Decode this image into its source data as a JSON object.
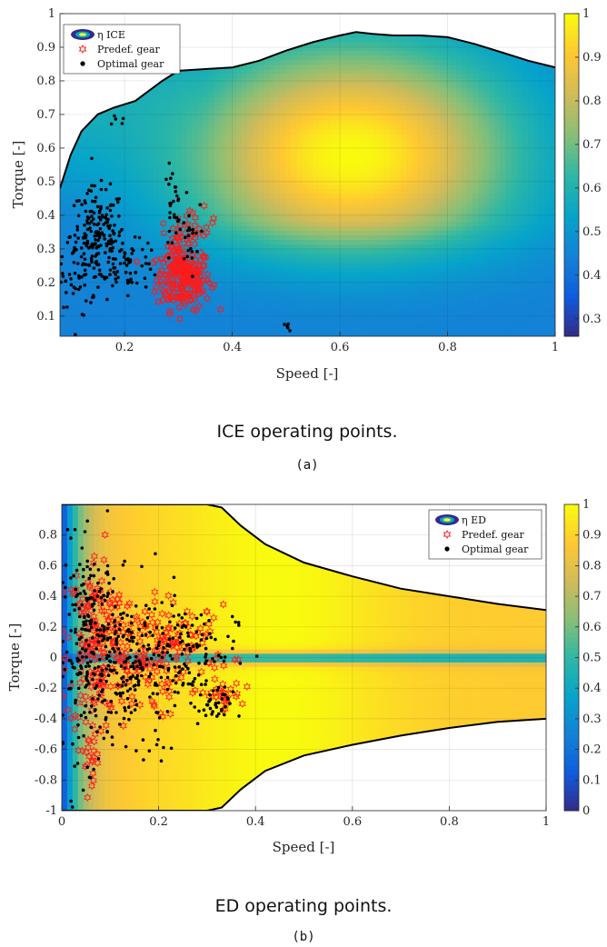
{
  "colors": {
    "parula": [
      "#352a87",
      "#0f5cdd",
      "#1481d6",
      "#06a4ca",
      "#2eb7a4",
      "#87bf77",
      "#d1bb59",
      "#fec832",
      "#f9fb0e"
    ],
    "predef_marker": "#ff1a1a",
    "optimal_marker": "#000000",
    "envelope": "#000000"
  },
  "chart_data": [
    {
      "type": "scatter",
      "caption": "ICE operating points.",
      "sublabel": "(a)",
      "xlabel": "Speed [-]",
      "ylabel": "Torque [-]",
      "xlim": [
        0.08,
        1.0
      ],
      "ylim": [
        0.04,
        1.0
      ],
      "xticks": [
        0.2,
        0.4,
        0.6,
        0.8,
        1
      ],
      "yticks": [
        0.1,
        0.2,
        0.3,
        0.4,
        0.5,
        0.6,
        0.7,
        0.8,
        0.9,
        1
      ],
      "xtick_labels": [
        "0.2",
        "0.4",
        "0.6",
        "0.8",
        "1"
      ],
      "ytick_labels": [
        "0.1",
        "0.2",
        "0.3",
        "0.4",
        "0.5",
        "0.6",
        "0.7",
        "0.8",
        "0.9",
        "1"
      ],
      "grid": true,
      "colorbar": {
        "range": [
          0.26,
          1.0
        ],
        "ticks": [
          0.3,
          0.4,
          0.5,
          0.6,
          0.7,
          0.8,
          0.9,
          1
        ],
        "tick_labels": [
          "0.3",
          "0.4",
          "0.5",
          "0.6",
          "0.7",
          "0.8",
          "0.9",
          "1"
        ]
      },
      "legend": {
        "position": "top-left",
        "entries": [
          "η ICE",
          "Predef. gear",
          "Optimal gear"
        ]
      },
      "background": "efficiency contour map",
      "max_torque_curve": {
        "x": [
          0.08,
          0.1,
          0.12,
          0.15,
          0.18,
          0.22,
          0.27,
          0.3,
          0.35,
          0.4,
          0.45,
          0.5,
          0.55,
          0.6,
          0.63,
          0.66,
          0.7,
          0.75,
          0.8,
          0.85,
          0.9,
          0.95,
          1.0
        ],
        "y": [
          0.48,
          0.58,
          0.65,
          0.7,
          0.72,
          0.74,
          0.8,
          0.83,
          0.835,
          0.84,
          0.86,
          0.89,
          0.915,
          0.935,
          0.945,
          0.94,
          0.935,
          0.935,
          0.93,
          0.91,
          0.885,
          0.86,
          0.84
        ]
      },
      "series": [
        {
          "name": "Predef. gear",
          "marker": "hexagram",
          "clusters": [
            {
              "cx": 0.31,
              "cy": 0.21,
              "sx": 0.025,
              "sy": 0.045,
              "n": 200
            },
            {
              "cx": 0.3,
              "cy": 0.3,
              "sx": 0.015,
              "sy": 0.04,
              "n": 40
            },
            {
              "cx": 0.33,
              "cy": 0.37,
              "sx": 0.02,
              "sy": 0.025,
              "n": 22
            }
          ]
        },
        {
          "name": "Optimal gear",
          "marker": "dot",
          "clusters": [
            {
              "cx": 0.15,
              "cy": 0.34,
              "sx": 0.025,
              "sy": 0.07,
              "n": 170
            },
            {
              "cx": 0.21,
              "cy": 0.25,
              "sx": 0.03,
              "sy": 0.035,
              "n": 60
            },
            {
              "cx": 0.12,
              "cy": 0.25,
              "sx": 0.02,
              "sy": 0.06,
              "n": 40
            },
            {
              "cx": 0.29,
              "cy": 0.42,
              "sx": 0.008,
              "sy": 0.06,
              "n": 28
            },
            {
              "cx": 0.32,
              "cy": 0.33,
              "sx": 0.01,
              "sy": 0.05,
              "n": 20
            },
            {
              "cx": 0.18,
              "cy": 0.68,
              "sx": 0.012,
              "sy": 0.03,
              "n": 6
            },
            {
              "cx": 0.5,
              "cy": 0.06,
              "sx": 0.008,
              "sy": 0.01,
              "n": 5
            },
            {
              "cx": 0.09,
              "cy": 0.2,
              "sx": 0.01,
              "sy": 0.02,
              "n": 6
            }
          ]
        }
      ]
    },
    {
      "type": "scatter",
      "caption": "ED operating points.",
      "sublabel": "(b)",
      "xlabel": "Speed [-]",
      "ylabel": "Torque [-]",
      "xlim": [
        0,
        1.0
      ],
      "ylim": [
        -1.0,
        1.0
      ],
      "xticks": [
        0,
        0.2,
        0.4,
        0.6,
        0.8,
        1
      ],
      "yticks": [
        -1,
        -0.8,
        -0.6,
        -0.4,
        -0.2,
        0,
        0.2,
        0.4,
        0.6,
        0.8
      ],
      "xtick_labels": [
        "0",
        "0.2",
        "0.4",
        "0.6",
        "0.8",
        "1"
      ],
      "ytick_labels": [
        "-1",
        "-0.8",
        "-0.6",
        "-0.4",
        "-0.2",
        "0",
        "0.2",
        "0.4",
        "0.6",
        "0.8"
      ],
      "grid": true,
      "colorbar": {
        "range": [
          0,
          1.0
        ],
        "ticks": [
          0,
          0.1,
          0.2,
          0.3,
          0.4,
          0.5,
          0.6,
          0.7,
          0.8,
          0.9,
          1
        ],
        "tick_labels": [
          "0",
          "0.1",
          "0.2",
          "0.3",
          "0.4",
          "0.5",
          "0.6",
          "0.7",
          "0.8",
          "0.9",
          "1"
        ]
      },
      "legend": {
        "position": "top-right",
        "entries": [
          "η ED",
          "Predef. gear",
          "Optimal gear"
        ]
      },
      "background": "efficiency contour map",
      "max_torque_curve": {
        "x": [
          0,
          0.3,
          0.33,
          0.37,
          0.42,
          0.5,
          0.6,
          0.7,
          0.8,
          0.9,
          1.0
        ],
        "y": [
          1,
          1,
          0.98,
          0.86,
          0.74,
          0.62,
          0.53,
          0.45,
          0.4,
          0.35,
          0.31
        ]
      },
      "min_torque_curve": {
        "x": [
          0,
          0.3,
          0.33,
          0.37,
          0.42,
          0.5,
          0.6,
          0.7,
          0.8,
          0.9,
          1.0
        ],
        "y": [
          -1,
          -1,
          -0.98,
          -0.86,
          -0.74,
          -0.64,
          -0.57,
          -0.51,
          -0.46,
          -0.42,
          -0.4
        ]
      },
      "series": [
        {
          "name": "Predef. gear",
          "marker": "hexagram",
          "clusters": [
            {
              "cx": 0.07,
              "cy": 0.1,
              "sx": 0.03,
              "sy": 0.3,
              "n": 160
            },
            {
              "cx": 0.15,
              "cy": 0.0,
              "sx": 0.05,
              "sy": 0.2,
              "n": 130
            },
            {
              "cx": 0.25,
              "cy": 0.1,
              "sx": 0.05,
              "sy": 0.12,
              "n": 70
            },
            {
              "cx": 0.33,
              "cy": -0.25,
              "sx": 0.02,
              "sy": 0.05,
              "n": 30
            },
            {
              "cx": 0.06,
              "cy": -0.6,
              "sx": 0.015,
              "sy": 0.1,
              "n": 22
            }
          ]
        },
        {
          "name": "Optimal gear",
          "marker": "dot",
          "clusters": [
            {
              "cx": 0.06,
              "cy": 0.05,
              "sx": 0.03,
              "sy": 0.35,
              "n": 220
            },
            {
              "cx": 0.15,
              "cy": -0.05,
              "sx": 0.05,
              "sy": 0.25,
              "n": 180
            },
            {
              "cx": 0.26,
              "cy": 0.05,
              "sx": 0.05,
              "sy": 0.15,
              "n": 100
            },
            {
              "cx": 0.31,
              "cy": -0.32,
              "sx": 0.02,
              "sy": 0.06,
              "n": 35
            },
            {
              "cx": 0.2,
              "cy": -0.58,
              "sx": 0.01,
              "sy": 0.03,
              "n": 5
            }
          ]
        }
      ]
    }
  ]
}
